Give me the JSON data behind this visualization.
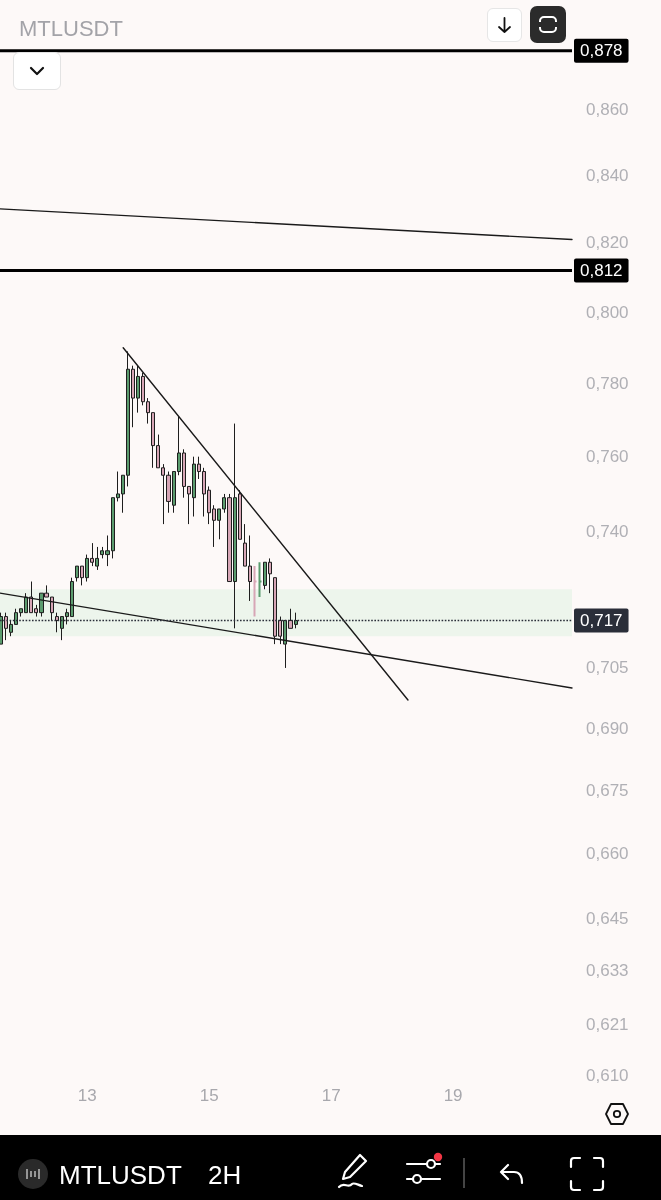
{
  "chart_data": {
    "type": "candlestick",
    "title": "MTLUSDT",
    "x": [
      11.583,
      11.667,
      11.75,
      11.833,
      11.917,
      12,
      12.083,
      12.167,
      12.25,
      12.333,
      12.417,
      12.5,
      12.583,
      12.667,
      12.75,
      12.833,
      12.917,
      13,
      13.083,
      13.167,
      13.25,
      13.333,
      13.417,
      13.5,
      13.583,
      13.667,
      13.75,
      13.833,
      13.917,
      14,
      14.083,
      14.167,
      14.25,
      14.333,
      14.417,
      14.5,
      14.583,
      14.667,
      14.75,
      14.833,
      14.917,
      15,
      15.083,
      15.167,
      15.25,
      15.333,
      15.417,
      15.5,
      15.583,
      15.667,
      15.75,
      15.833,
      15.917,
      16,
      16.083,
      16.167,
      16.25,
      16.333,
      16.417
    ],
    "ohlc": [
      [
        0.711,
        0.719,
        0.711,
        0.718
      ],
      [
        0.718,
        0.719,
        0.712,
        0.715
      ],
      [
        0.714,
        0.717,
        0.713,
        0.716
      ],
      [
        0.716,
        0.72,
        0.716,
        0.719
      ],
      [
        0.719,
        0.72,
        0.718,
        0.72
      ],
      [
        0.719,
        0.724,
        0.719,
        0.723
      ],
      [
        0.723,
        0.727,
        0.719,
        0.719
      ],
      [
        0.72,
        0.721,
        0.718,
        0.719
      ],
      [
        0.719,
        0.724,
        0.718,
        0.724
      ],
      [
        0.724,
        0.726,
        0.723,
        0.723
      ],
      [
        0.723,
        0.723,
        0.717,
        0.719
      ],
      [
        0.718,
        0.719,
        0.714,
        0.717
      ],
      [
        0.715,
        0.718,
        0.712,
        0.718
      ],
      [
        0.718,
        0.72,
        0.716,
        0.719
      ],
      [
        0.718,
        0.728,
        0.718,
        0.727
      ],
      [
        0.728,
        0.731,
        0.727,
        0.731
      ],
      [
        0.731,
        0.731,
        0.726,
        0.728
      ],
      [
        0.728,
        0.734,
        0.727,
        0.733
      ],
      [
        0.733,
        0.737,
        0.731,
        0.732
      ],
      [
        0.731,
        0.736,
        0.73,
        0.733
      ],
      [
        0.734,
        0.736,
        0.733,
        0.735
      ],
      [
        0.734,
        0.739,
        0.731,
        0.735
      ],
      [
        0.735,
        0.749,
        0.733,
        0.749
      ],
      [
        0.749,
        0.756,
        0.748,
        0.75
      ],
      [
        0.75,
        0.755,
        0.745,
        0.755
      ],
      [
        0.755,
        0.789,
        0.752,
        0.784
      ],
      [
        0.784,
        0.785,
        0.768,
        0.776
      ],
      [
        0.776,
        0.785,
        0.772,
        0.782
      ],
      [
        0.782,
        0.783,
        0.774,
        0.775
      ],
      [
        0.775,
        0.776,
        0.769,
        0.772
      ],
      [
        0.772,
        0.772,
        0.757,
        0.763
      ],
      [
        0.763,
        0.766,
        0.757,
        0.757
      ],
      [
        0.757,
        0.758,
        0.742,
        0.755
      ],
      [
        0.755,
        0.756,
        0.745,
        0.748
      ],
      [
        0.747,
        0.756,
        0.745,
        0.756
      ],
      [
        0.756,
        0.771,
        0.755,
        0.761
      ],
      [
        0.761,
        0.762,
        0.749,
        0.752
      ],
      [
        0.752,
        0.752,
        0.742,
        0.75
      ],
      [
        0.749,
        0.76,
        0.744,
        0.758
      ],
      [
        0.758,
        0.76,
        0.754,
        0.756
      ],
      [
        0.756,
        0.757,
        0.744,
        0.75
      ],
      [
        0.751,
        0.752,
        0.742,
        0.745
      ],
      [
        0.746,
        0.747,
        0.736,
        0.743
      ],
      [
        0.743,
        0.746,
        0.738,
        0.746
      ],
      [
        0.746,
        0.75,
        0.745,
        0.749
      ],
      [
        0.749,
        0.75,
        0.727,
        0.727
      ],
      [
        0.727,
        0.769,
        0.715,
        0.749
      ],
      [
        0.75,
        0.751,
        0.738,
        0.738
      ],
      [
        0.737,
        0.742,
        0.731,
        0.731
      ],
      [
        0.731,
        0.739,
        0.722,
        0.727
      ],
      [
        0.727,
        0.731,
        0.718,
        0.727
      ],
      [
        0.727,
        0.732,
        0.723,
        0.727
      ],
      [
        0.726,
        0.732,
        0.725,
        0.732
      ],
      [
        0.732,
        0.733,
        0.724,
        0.729
      ],
      [
        0.728,
        0.728,
        0.711,
        0.713
      ],
      [
        0.717,
        0.718,
        0.711,
        0.713
      ],
      [
        0.711,
        0.717,
        0.705,
        0.717
      ],
      [
        0.717,
        0.72,
        0.715,
        0.715
      ],
      [
        0.716,
        0.719,
        0.715,
        0.717
      ]
    ],
    "colors": [
      "#5b9c6e",
      "#d7a6b6",
      "#5b9c6e",
      "#5b9c6e",
      "#5b9c6e",
      "#5b9c6e",
      "#d7a6b6",
      "#d7a6b6",
      "#5b9c6e",
      "#d7a6b6",
      "#d7a6b6",
      "#d7a6b6",
      "#5b9c6e",
      "#5b9c6e",
      "#5b9c6e",
      "#5b9c6e",
      "#d7a6b6",
      "#5b9c6e",
      "#d7a6b6",
      "#5b9c6e",
      "#5b9c6e",
      "#5b9c6e",
      "#5b9c6e",
      "#5b9c6e",
      "#5b9c6e",
      "#5b9c6e",
      "#d7a6b6",
      "#5b9c6e",
      "#d7a6b6",
      "#d7a6b6",
      "#d7a6b6",
      "#d7a6b6",
      "#d7a6b6",
      "#d7a6b6",
      "#5b9c6e",
      "#5b9c6e",
      "#d7a6b6",
      "#d7a6b6",
      "#5b9c6e",
      "#d7a6b6",
      "#d7a6b6",
      "#d7a6b6",
      "#d7a6b6",
      "#5b9c6e",
      "#5b9c6e",
      "#d7a6b6",
      "#5b9c6e",
      "#d7a6b6",
      "#d7a6b6",
      "#d7a6b6",
      "#d7a6b6",
      "#5b9c6e",
      "#5b9c6e",
      "#d7a6b6",
      "#d7a6b6",
      "#d7a6b6",
      "#5b9c6e",
      "#d7a6b6",
      "#5b9c6e"
    ],
    "series": [
      {
        "type": "line",
        "x": [
          11.57,
          20.95
        ],
        "values": [
          0.83,
          0.821
        ],
        "color": "#1a1a1a"
      },
      {
        "type": "line",
        "x": [
          11.57,
          20.95
        ],
        "values": [
          0.724,
          0.7
        ],
        "color": "#1a1a1a"
      },
      {
        "type": "line",
        "x": [
          13.59,
          18.26
        ],
        "values": [
          0.79,
          0.697
        ],
        "color": "#1a1a1a"
      }
    ],
    "ref_lines": [
      {
        "axis": "y",
        "value": 0.878,
        "label": "0,878",
        "color": "#000000",
        "line_style": "solid"
      },
      {
        "axis": "y",
        "value": 0.812,
        "label": "0,812",
        "color": "#000000",
        "line_style": "solid"
      },
      {
        "axis": "y",
        "value": 0.717,
        "label": "0,717",
        "color": "#2a2e39",
        "line_style": "dotted"
      }
    ],
    "bands": [
      {
        "axis": "y",
        "from": 0.713,
        "to": 0.725,
        "color": "#edf5ec"
      }
    ],
    "log": "y",
    "grid": false,
    "xlim": [
      11.57,
      20.95
    ],
    "xticks": [
      13,
      15,
      17,
      19
    ],
    "ylim": [
      0.61,
      0.894
    ],
    "yticks": [
      {
        "value": 0.61,
        "label": "0,610"
      },
      {
        "value": 0.621,
        "label": "0,621"
      },
      {
        "value": 0.633,
        "label": "0,633"
      },
      {
        "value": 0.645,
        "label": "0,645"
      },
      {
        "value": 0.66,
        "label": "0,660"
      },
      {
        "value": 0.675,
        "label": "0,675"
      },
      {
        "value": 0.69,
        "label": "0,690"
      },
      {
        "value": 0.705,
        "label": "0,705"
      },
      {
        "value": 0.74,
        "label": "0,740"
      },
      {
        "value": 0.76,
        "label": "0,760"
      },
      {
        "value": 0.78,
        "label": "0,780"
      },
      {
        "value": 0.8,
        "label": "0,800"
      },
      {
        "value": 0.82,
        "label": "0,820"
      },
      {
        "value": 0.84,
        "label": "0,840"
      },
      {
        "value": 0.86,
        "label": "0,860"
      }
    ],
    "annotations": [
      "MTLUSDT",
      "2H"
    ]
  }
}
